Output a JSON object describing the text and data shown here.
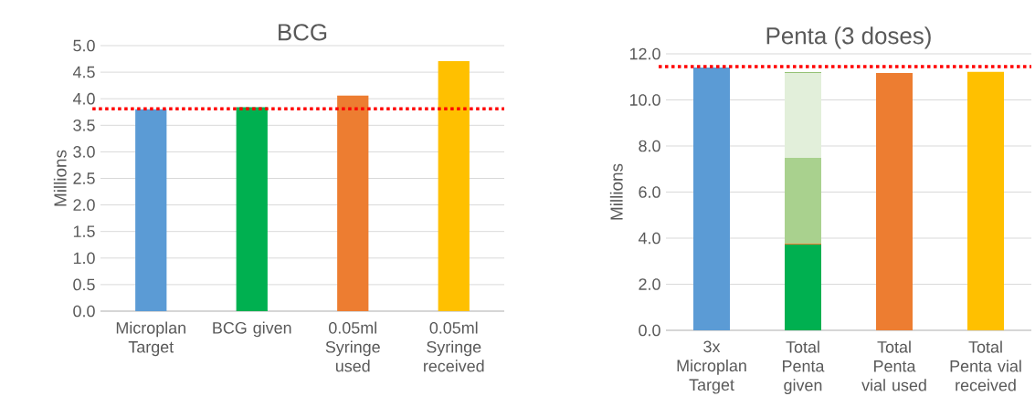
{
  "chart_data": [
    {
      "type": "bar",
      "title": "BCG",
      "ylabel": "Millions",
      "categories": [
        "Microplan Target",
        "BCG given",
        "0.05ml Syringe used",
        "0.05ml Syringe received"
      ],
      "values": [
        3.8,
        3.84,
        4.06,
        4.71
      ],
      "colors": [
        "#5b9bd5",
        "#00b050",
        "#ed7d31",
        "#ffc000"
      ],
      "ylim": [
        0,
        5
      ],
      "yticks": [
        {
          "value": 0,
          "label": "0.0"
        },
        {
          "value": 0.5,
          "label": "0.5"
        },
        {
          "value": 1,
          "label": "1.0"
        },
        {
          "value": 1.5,
          "label": "1.5"
        },
        {
          "value": 2,
          "label": "2.0"
        },
        {
          "value": 2.5,
          "label": "2.5"
        },
        {
          "value": 3,
          "label": "3.0"
        },
        {
          "value": 3.5,
          "label": "3.5"
        },
        {
          "value": 4,
          "label": "4.0"
        },
        {
          "value": 4.5,
          "label": "4.5"
        },
        {
          "value": 5,
          "label": "5.0"
        }
      ],
      "grid": "y",
      "ref_lines": [
        {
          "axis": "y",
          "value": 3.81,
          "color": "#ff0000",
          "line_style": "dotted"
        }
      ]
    },
    {
      "type": "bar",
      "title": "Penta (3 doses)",
      "ylabel": "Millions",
      "stacked": true,
      "categories": [
        "3x Microplan Target",
        "Total Penta given",
        "Total Penta vial used",
        "Total Penta vial received"
      ],
      "series": [
        {
          "values": [
            11.41,
            3.72,
            11.17,
            11.22
          ],
          "colors": [
            "#5b9bd5",
            "#00b050",
            "#ed7d31",
            "#ffc000"
          ]
        },
        {
          "values": [
            null,
            0.04,
            null,
            null
          ],
          "color": "#ed7d31"
        },
        {
          "values": [
            null,
            3.73,
            null,
            null
          ],
          "color": "#a9d18e"
        },
        {
          "values": [
            null,
            3.68,
            null,
            null
          ],
          "color": "#e2efda"
        },
        {
          "values": [
            null,
            0.03,
            null,
            null
          ],
          "color": "#70ad47"
        }
      ],
      "ylim": [
        0,
        12
      ],
      "yticks": [
        {
          "value": 0,
          "label": "0.0"
        },
        {
          "value": 2,
          "label": "2.0"
        },
        {
          "value": 4,
          "label": "4.0"
        },
        {
          "value": 6,
          "label": "6.0"
        },
        {
          "value": 8,
          "label": "8.0"
        },
        {
          "value": 10,
          "label": "10.0"
        },
        {
          "value": 12,
          "label": "12.0"
        }
      ],
      "grid": "y",
      "ref_lines": [
        {
          "axis": "y",
          "value": 11.45,
          "color": "#ff0000",
          "line_style": "dotted"
        }
      ]
    }
  ]
}
